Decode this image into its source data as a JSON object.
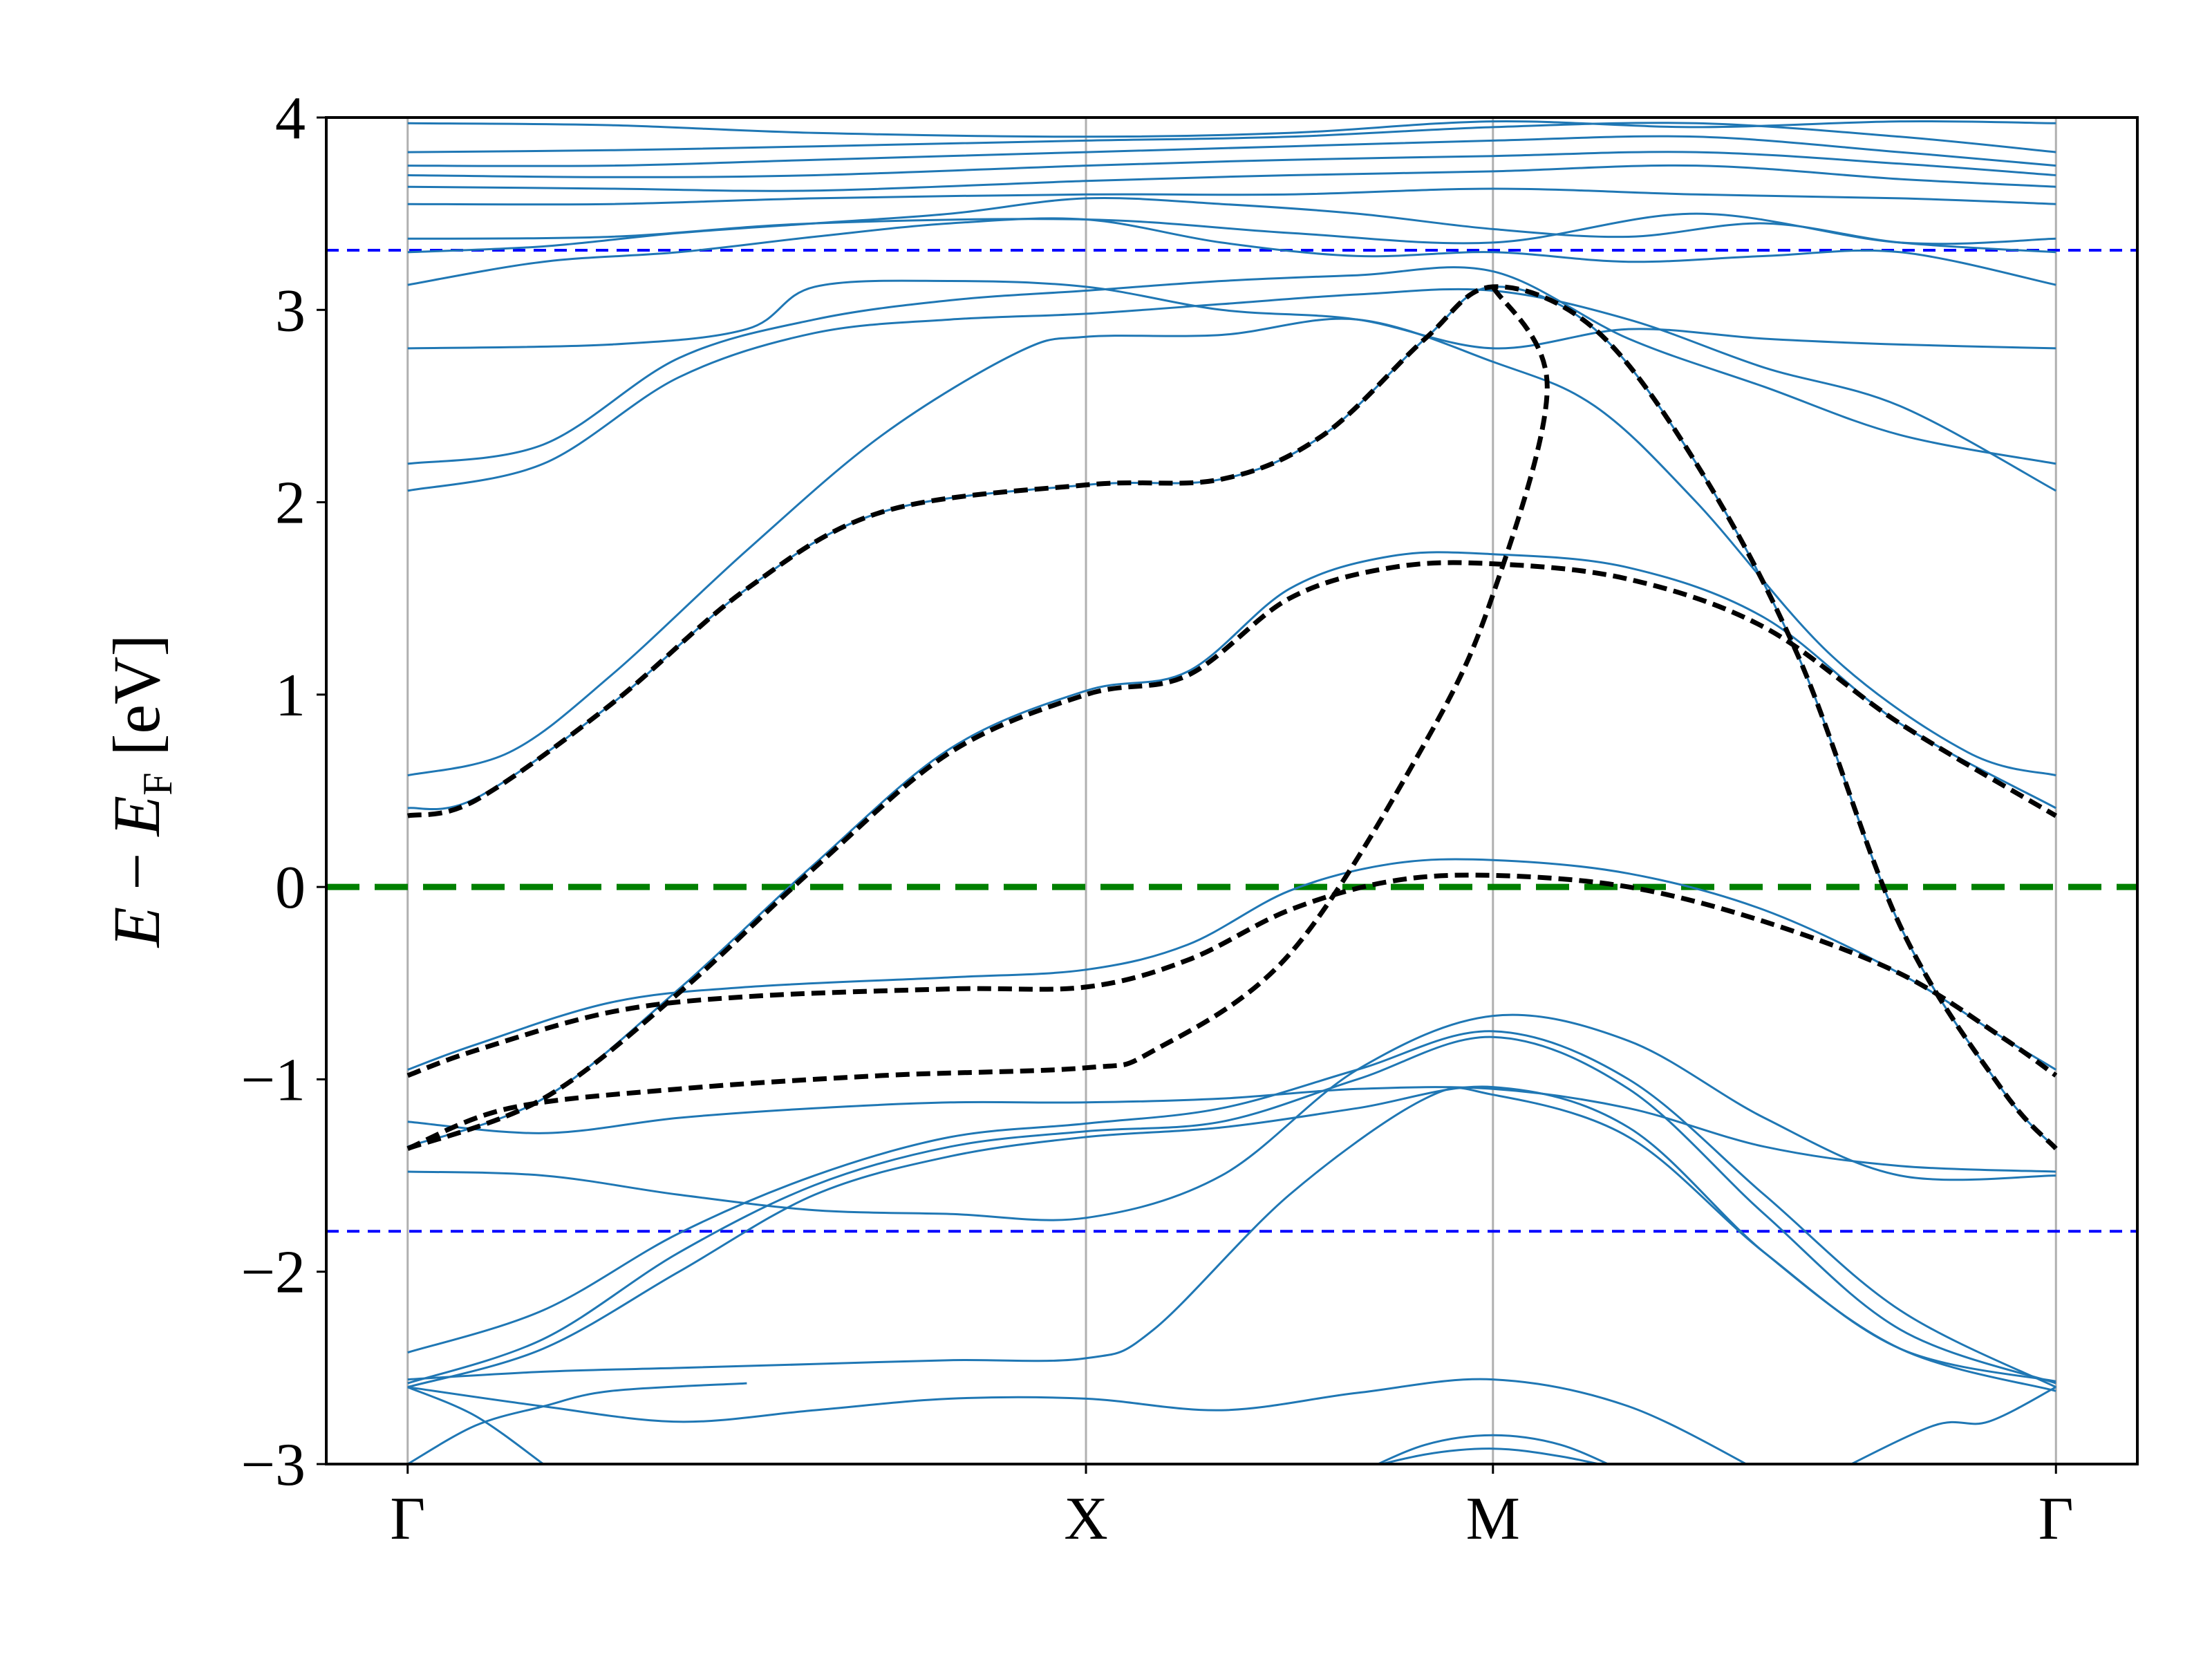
{
  "chart_data": {
    "type": "line",
    "title": "",
    "ylabel": {
      "E": "E",
      "minus": " − ",
      "EF": "E",
      "sub": "F",
      "unit": " [eV]"
    },
    "ylim": [
      -3,
      4
    ],
    "yticks": [
      -3,
      -2,
      -1,
      0,
      1,
      2,
      3,
      4
    ],
    "ytick_labels": [
      "−3",
      "−2",
      "−1",
      "0",
      "1",
      "2",
      "3",
      "4"
    ],
    "kpoints": [
      {
        "label": "Γ",
        "pos": 0.0
      },
      {
        "label": "X",
        "pos": 1.0
      },
      {
        "label": "M",
        "pos": 1.6
      },
      {
        "label": "Γ",
        "pos": 2.43
      }
    ],
    "xlim": [
      -0.12,
      2.55
    ],
    "grid": "vertical lines at high-symmetry k-points",
    "colors": {
      "dft_bands": "#1f77b4",
      "wannier_bands": "#000000",
      "fermi_level": "#008000",
      "window_lines": "#0000ff",
      "kpoint_lines": "#b0b0b0"
    },
    "reference_lines": [
      {
        "name": "fermi-level",
        "y": 0.0
      },
      {
        "name": "upper-window",
        "y": 3.31
      },
      {
        "name": "lower-window",
        "y": -1.79
      }
    ],
    "wannier_bands": [
      [
        [
          0,
          -1.36
        ],
        [
          0.2,
          -1.1
        ],
        [
          0.4,
          -0.55
        ],
        [
          0.6,
          0.1
        ],
        [
          0.8,
          0.7
        ],
        [
          1.0,
          1.0
        ],
        [
          1.15,
          1.1
        ],
        [
          1.3,
          1.5
        ],
        [
          1.45,
          1.66
        ],
        [
          1.6,
          1.68
        ],
        [
          1.8,
          1.6
        ],
        [
          2.0,
          1.35
        ],
        [
          2.2,
          0.85
        ],
        [
          2.43,
          0.37
        ]
      ],
      [
        [
          0,
          -0.98
        ],
        [
          0.1,
          -0.85
        ],
        [
          0.3,
          -0.65
        ],
        [
          0.5,
          -0.57
        ],
        [
          0.8,
          -0.53
        ],
        [
          1.0,
          -0.52
        ],
        [
          1.15,
          -0.38
        ],
        [
          1.3,
          -0.12
        ],
        [
          1.45,
          0.03
        ],
        [
          1.6,
          0.06
        ],
        [
          1.8,
          0.0
        ],
        [
          2.0,
          -0.18
        ],
        [
          2.2,
          -0.45
        ],
        [
          2.35,
          -0.78
        ],
        [
          2.43,
          -0.98
        ]
      ],
      [
        [
          0,
          -1.36
        ],
        [
          0.15,
          -1.15
        ],
        [
          0.4,
          -1.05
        ],
        [
          0.7,
          -0.98
        ],
        [
          1.0,
          -0.94
        ],
        [
          1.1,
          -0.85
        ],
        [
          1.3,
          -0.35
        ],
        [
          1.5,
          0.75
        ],
        [
          1.6,
          1.52
        ],
        [
          1.68,
          2.6
        ],
        [
          1.6,
          3.12
        ]
      ],
      [
        [
          0,
          0.37
        ],
        [
          0.1,
          0.45
        ],
        [
          0.3,
          0.95
        ],
        [
          0.5,
          1.55
        ],
        [
          0.7,
          1.95
        ],
        [
          1.0,
          2.09
        ],
        [
          1.2,
          2.12
        ],
        [
          1.35,
          2.35
        ],
        [
          1.5,
          2.85
        ],
        [
          1.6,
          3.12
        ],
        [
          1.75,
          2.9
        ],
        [
          1.9,
          2.2
        ],
        [
          2.05,
          1.2
        ],
        [
          2.2,
          -0.2
        ],
        [
          2.35,
          -1.05
        ],
        [
          2.43,
          -1.36
        ]
      ]
    ],
    "dft_bands": [
      [
        [
          0,
          -1.35
        ],
        [
          0.2,
          -1.1
        ],
        [
          0.4,
          -0.53
        ],
        [
          0.6,
          0.12
        ],
        [
          0.8,
          0.72
        ],
        [
          1.0,
          1.02
        ],
        [
          1.15,
          1.12
        ],
        [
          1.3,
          1.55
        ],
        [
          1.45,
          1.72
        ],
        [
          1.6,
          1.73
        ],
        [
          1.8,
          1.66
        ],
        [
          2.0,
          1.4
        ],
        [
          2.2,
          0.85
        ],
        [
          2.43,
          0.41
        ]
      ],
      [
        [
          0,
          -0.95
        ],
        [
          0.1,
          -0.82
        ],
        [
          0.3,
          -0.6
        ],
        [
          0.5,
          -0.52
        ],
        [
          0.8,
          -0.47
        ],
        [
          1.0,
          -0.43
        ],
        [
          1.15,
          -0.3
        ],
        [
          1.3,
          -0.02
        ],
        [
          1.45,
          0.12
        ],
        [
          1.6,
          0.14
        ],
        [
          1.8,
          0.07
        ],
        [
          2.0,
          -0.12
        ],
        [
          2.2,
          -0.45
        ],
        [
          2.35,
          -0.78
        ],
        [
          2.43,
          -0.95
        ]
      ],
      [
        [
          0,
          0.41
        ],
        [
          0.1,
          0.46
        ],
        [
          0.3,
          0.95
        ],
        [
          0.5,
          1.55
        ],
        [
          0.7,
          1.95
        ],
        [
          1.0,
          2.09
        ],
        [
          1.2,
          2.12
        ],
        [
          1.35,
          2.35
        ],
        [
          1.5,
          2.85
        ],
        [
          1.6,
          3.12
        ],
        [
          1.75,
          2.9
        ],
        [
          1.9,
          2.2
        ],
        [
          2.05,
          1.2
        ],
        [
          2.2,
          -0.2
        ],
        [
          2.35,
          -1.05
        ],
        [
          2.43,
          -1.36
        ]
      ],
      [
        [
          0,
          0.58
        ],
        [
          0.15,
          0.7
        ],
        [
          0.3,
          1.1
        ],
        [
          0.5,
          1.75
        ],
        [
          0.7,
          2.35
        ],
        [
          0.9,
          2.78
        ],
        [
          1.0,
          2.86
        ],
        [
          1.2,
          2.87
        ],
        [
          1.4,
          2.95
        ],
        [
          1.6,
          2.73
        ],
        [
          1.75,
          2.5
        ],
        [
          1.9,
          2.0
        ],
        [
          2.1,
          1.2
        ],
        [
          2.3,
          0.7
        ],
        [
          2.43,
          0.58
        ]
      ],
      [
        [
          0,
          2.06
        ],
        [
          0.2,
          2.2
        ],
        [
          0.4,
          2.65
        ],
        [
          0.6,
          2.88
        ],
        [
          0.8,
          2.95
        ],
        [
          1.0,
          2.98
        ],
        [
          1.2,
          3.03
        ],
        [
          1.4,
          3.08
        ],
        [
          1.6,
          3.1
        ],
        [
          1.8,
          2.95
        ],
        [
          2.0,
          2.7
        ],
        [
          2.2,
          2.5
        ],
        [
          2.43,
          2.06
        ]
      ],
      [
        [
          0,
          2.2
        ],
        [
          0.2,
          2.3
        ],
        [
          0.4,
          2.75
        ],
        [
          0.6,
          2.95
        ],
        [
          0.8,
          3.05
        ],
        [
          1.0,
          3.1
        ],
        [
          1.2,
          3.15
        ],
        [
          1.4,
          3.18
        ],
        [
          1.6,
          3.2
        ],
        [
          1.8,
          2.85
        ],
        [
          2.0,
          2.6
        ],
        [
          2.2,
          2.35
        ],
        [
          2.43,
          2.2
        ]
      ],
      [
        [
          0,
          2.8
        ],
        [
          0.3,
          2.82
        ],
        [
          0.5,
          2.9
        ],
        [
          0.6,
          3.12
        ],
        [
          0.8,
          3.15
        ],
        [
          1.0,
          3.12
        ],
        [
          1.2,
          3.0
        ],
        [
          1.4,
          2.95
        ],
        [
          1.6,
          2.8
        ],
        [
          1.8,
          2.9
        ],
        [
          2.0,
          2.85
        ],
        [
          2.2,
          2.82
        ],
        [
          2.43,
          2.8
        ]
      ],
      [
        [
          0,
          3.13
        ],
        [
          0.2,
          3.25
        ],
        [
          0.4,
          3.3
        ],
        [
          0.6,
          3.38
        ],
        [
          0.8,
          3.45
        ],
        [
          1.0,
          3.47
        ],
        [
          1.2,
          3.35
        ],
        [
          1.4,
          3.28
        ],
        [
          1.6,
          3.3
        ],
        [
          1.8,
          3.25
        ],
        [
          2.0,
          3.28
        ],
        [
          2.2,
          3.3
        ],
        [
          2.43,
          3.13
        ]
      ],
      [
        [
          0,
          3.3
        ],
        [
          0.2,
          3.33
        ],
        [
          0.4,
          3.4
        ],
        [
          0.6,
          3.45
        ],
        [
          0.8,
          3.5
        ],
        [
          1.0,
          3.58
        ],
        [
          1.2,
          3.55
        ],
        [
          1.4,
          3.5
        ],
        [
          1.6,
          3.42
        ],
        [
          1.8,
          3.38
        ],
        [
          2.0,
          3.45
        ],
        [
          2.2,
          3.35
        ],
        [
          2.43,
          3.3
        ]
      ],
      [
        [
          0,
          3.37
        ],
        [
          0.3,
          3.38
        ],
        [
          0.6,
          3.45
        ],
        [
          1.0,
          3.47
        ],
        [
          1.3,
          3.4
        ],
        [
          1.6,
          3.35
        ],
        [
          1.9,
          3.5
        ],
        [
          2.2,
          3.35
        ],
        [
          2.43,
          3.37
        ]
      ],
      [
        [
          0,
          3.55
        ],
        [
          0.3,
          3.55
        ],
        [
          0.6,
          3.58
        ],
        [
          1.0,
          3.6
        ],
        [
          1.3,
          3.6
        ],
        [
          1.6,
          3.63
        ],
        [
          1.9,
          3.6
        ],
        [
          2.2,
          3.58
        ],
        [
          2.43,
          3.55
        ]
      ],
      [
        [
          0,
          3.64
        ],
        [
          0.3,
          3.63
        ],
        [
          0.6,
          3.62
        ],
        [
          1.0,
          3.67
        ],
        [
          1.3,
          3.7
        ],
        [
          1.6,
          3.72
        ],
        [
          1.9,
          3.75
        ],
        [
          2.2,
          3.68
        ],
        [
          2.43,
          3.64
        ]
      ],
      [
        [
          0,
          3.7
        ],
        [
          0.3,
          3.69
        ],
        [
          0.6,
          3.7
        ],
        [
          1.0,
          3.75
        ],
        [
          1.3,
          3.78
        ],
        [
          1.6,
          3.8
        ],
        [
          1.9,
          3.82
        ],
        [
          2.2,
          3.76
        ],
        [
          2.43,
          3.7
        ]
      ],
      [
        [
          0,
          3.75
        ],
        [
          0.3,
          3.75
        ],
        [
          0.6,
          3.78
        ],
        [
          1.0,
          3.82
        ],
        [
          1.3,
          3.85
        ],
        [
          1.6,
          3.88
        ],
        [
          1.9,
          3.9
        ],
        [
          2.2,
          3.82
        ],
        [
          2.43,
          3.75
        ]
      ],
      [
        [
          0,
          3.82
        ],
        [
          0.3,
          3.83
        ],
        [
          0.6,
          3.85
        ],
        [
          1.0,
          3.88
        ],
        [
          1.3,
          3.9
        ],
        [
          1.6,
          3.95
        ],
        [
          1.9,
          3.97
        ],
        [
          2.2,
          3.9
        ],
        [
          2.43,
          3.82
        ]
      ],
      [
        [
          0,
          3.97
        ],
        [
          0.3,
          3.96
        ],
        [
          0.6,
          3.92
        ],
        [
          1.0,
          3.9
        ],
        [
          1.3,
          3.92
        ],
        [
          1.6,
          3.98
        ],
        [
          1.9,
          3.95
        ],
        [
          2.2,
          3.98
        ],
        [
          2.43,
          3.97
        ]
      ],
      [
        [
          0,
          -1.22
        ],
        [
          0.2,
          -1.28
        ],
        [
          0.4,
          -1.2
        ],
        [
          0.6,
          -1.15
        ],
        [
          0.8,
          -1.12
        ],
        [
          1.0,
          -1.12
        ],
        [
          1.2,
          -1.1
        ],
        [
          1.4,
          -1.05
        ],
        [
          1.6,
          -1.05
        ],
        [
          1.8,
          -1.15
        ],
        [
          2.0,
          -1.35
        ],
        [
          2.2,
          -1.45
        ],
        [
          2.43,
          -1.48
        ]
      ],
      [
        [
          0,
          -1.48
        ],
        [
          0.2,
          -1.5
        ],
        [
          0.4,
          -1.6
        ],
        [
          0.6,
          -1.68
        ],
        [
          0.8,
          -1.7
        ],
        [
          1.0,
          -1.72
        ],
        [
          1.2,
          -1.5
        ],
        [
          1.4,
          -0.95
        ],
        [
          1.6,
          -0.67
        ],
        [
          1.8,
          -0.8
        ],
        [
          2.0,
          -1.2
        ],
        [
          2.2,
          -1.5
        ],
        [
          2.43,
          -1.5
        ]
      ],
      [
        [
          0,
          -2.42
        ],
        [
          0.2,
          -2.2
        ],
        [
          0.4,
          -1.8
        ],
        [
          0.6,
          -1.5
        ],
        [
          0.8,
          -1.3
        ],
        [
          1.0,
          -1.23
        ],
        [
          1.2,
          -1.15
        ],
        [
          1.4,
          -0.95
        ],
        [
          1.6,
          -0.75
        ],
        [
          1.8,
          -1.0
        ],
        [
          2.0,
          -1.6
        ],
        [
          2.2,
          -2.2
        ],
        [
          2.43,
          -2.6
        ]
      ],
      [
        [
          0,
          -2.58
        ],
        [
          0.2,
          -2.35
        ],
        [
          0.4,
          -1.9
        ],
        [
          0.6,
          -1.55
        ],
        [
          0.8,
          -1.35
        ],
        [
          1.0,
          -1.27
        ],
        [
          1.2,
          -1.22
        ],
        [
          1.4,
          -1.0
        ],
        [
          1.6,
          -0.78
        ],
        [
          1.8,
          -1.05
        ],
        [
          2.0,
          -1.7
        ],
        [
          2.2,
          -2.3
        ],
        [
          2.43,
          -2.58
        ]
      ],
      [
        [
          0,
          -2.6
        ],
        [
          0.2,
          -2.4
        ],
        [
          0.4,
          -2.0
        ],
        [
          0.6,
          -1.6
        ],
        [
          0.8,
          -1.4
        ],
        [
          1.0,
          -1.3
        ],
        [
          1.2,
          -1.25
        ],
        [
          1.4,
          -1.15
        ],
        [
          1.6,
          -1.04
        ],
        [
          1.8,
          -1.25
        ],
        [
          2.0,
          -1.9
        ],
        [
          2.2,
          -2.4
        ],
        [
          2.43,
          -2.62
        ]
      ],
      [
        [
          0,
          -2.56
        ],
        [
          0.2,
          -2.52
        ],
        [
          0.4,
          -2.5
        ],
        [
          0.6,
          -2.48
        ],
        [
          0.8,
          -2.46
        ],
        [
          1.0,
          -2.45
        ],
        [
          1.1,
          -2.3
        ],
        [
          1.3,
          -1.6
        ],
        [
          1.5,
          -1.1
        ],
        [
          1.6,
          -1.08
        ],
        [
          1.8,
          -1.3
        ],
        [
          2.0,
          -1.9
        ],
        [
          2.2,
          -2.4
        ],
        [
          2.43,
          -2.57
        ]
      ],
      [
        [
          0,
          -2.6
        ],
        [
          0.2,
          -2.7
        ],
        [
          0.4,
          -2.78
        ],
        [
          0.6,
          -2.72
        ],
        [
          0.8,
          -2.66
        ],
        [
          1.0,
          -2.66
        ],
        [
          1.2,
          -2.72
        ],
        [
          1.4,
          -2.63
        ],
        [
          1.6,
          -2.56
        ],
        [
          1.8,
          -2.7
        ],
        [
          2.0,
          -3.05
        ]
      ],
      [
        [
          0,
          -2.6
        ],
        [
          0.1,
          -2.75
        ],
        [
          0.2,
          -3.0
        ]
      ],
      [
        [
          0,
          -3.0
        ],
        [
          0.1,
          -2.8
        ],
        [
          0.2,
          -2.7
        ],
        [
          0.3,
          -2.62
        ],
        [
          0.5,
          -2.58
        ]
      ],
      [
        [
          1.4,
          -3.05
        ],
        [
          1.5,
          -2.9
        ],
        [
          1.6,
          -2.85
        ],
        [
          1.7,
          -2.9
        ],
        [
          1.8,
          -3.05
        ]
      ],
      [
        [
          1.38,
          -3.05
        ],
        [
          1.5,
          -2.95
        ],
        [
          1.6,
          -2.92
        ],
        [
          1.7,
          -2.96
        ],
        [
          1.82,
          -3.05
        ]
      ],
      [
        [
          2.1,
          -3.05
        ],
        [
          2.25,
          -2.8
        ],
        [
          2.33,
          -2.78
        ],
        [
          2.43,
          -2.6
        ]
      ]
    ]
  }
}
